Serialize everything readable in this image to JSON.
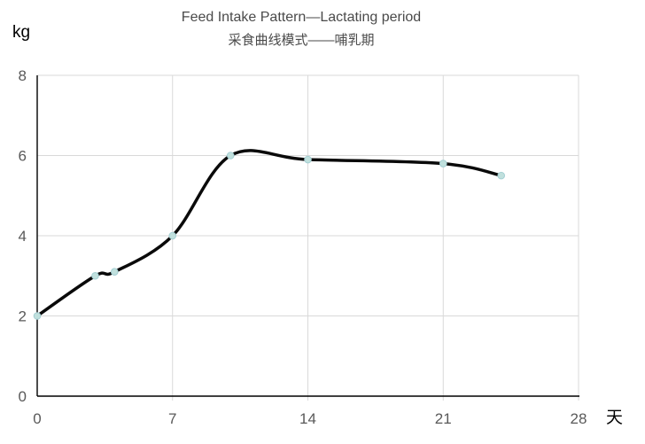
{
  "chart": {
    "title": "Feed Intake Pattern—Lactating period",
    "subtitle": "采食曲线模式——哺乳期",
    "y_unit": "kg",
    "x_unit": "天"
  },
  "chart_data": {
    "type": "line",
    "title": "Feed Intake Pattern—Lactating period",
    "subtitle": "采食曲线模式——哺乳期",
    "x": [
      0,
      3,
      4,
      7,
      10,
      14,
      21,
      24
    ],
    "y": [
      2,
      3,
      3.1,
      4,
      6,
      5.9,
      5.8,
      5.5
    ],
    "xlabel": "天",
    "ylabel": "kg",
    "xlim": [
      0,
      28
    ],
    "ylim": [
      0,
      8
    ],
    "x_ticks": [
      0,
      7,
      14,
      21,
      28
    ],
    "y_ticks": [
      0,
      2,
      4,
      6,
      8
    ],
    "grid": true,
    "legend": "none",
    "smooth": true,
    "colors": {
      "line": "#0a0a0a",
      "marker_fill": "#c0e0dd",
      "marker_stroke": "#a4cfd3",
      "gridline": "#d9d9d9",
      "axis": "#000000",
      "tick_label": "#595959",
      "title": "#4a4a4a"
    }
  }
}
